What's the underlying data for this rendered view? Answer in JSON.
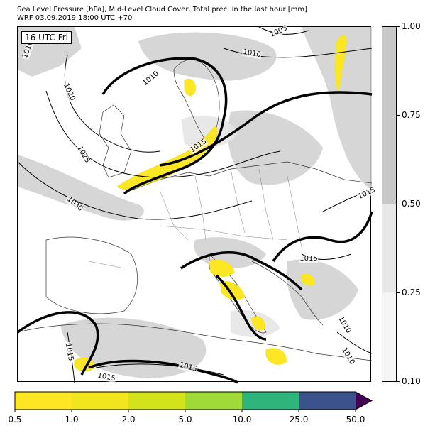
{
  "header": {
    "title_line1": "Sea Level Pressure [hPa], Mid-Level Cloud Cover, Total prec. in the last hour [mm]",
    "title_line2": "WRF 03.09.2019 18:00 UTC +70"
  },
  "map": {
    "time_label": "16 UTC Fri",
    "isobar_labels": [
      "1005",
      "1010",
      "1010",
      "1015",
      "1020",
      "1025",
      "1030",
      "1015",
      "1015",
      "1015",
      "1010",
      "1010",
      "1015",
      "1015",
      "1010"
    ]
  },
  "cloud_legend": {
    "ticks": [
      "1.00",
      "0.75",
      "0.50",
      "0.25",
      "0.10"
    ],
    "colors": [
      "#c8c8c8",
      "#e8e8e8",
      "#f5f5f5"
    ]
  },
  "precip_legend": {
    "ticks": [
      "0.5",
      "1.0",
      "2.0",
      "5.0",
      "10.0",
      "25.0",
      "50.0"
    ],
    "colors": [
      "#fde725",
      "#f1e51d",
      "#d2e21b",
      "#a0da39",
      "#2fb47c",
      "#3b528b",
      "#440154"
    ]
  }
}
